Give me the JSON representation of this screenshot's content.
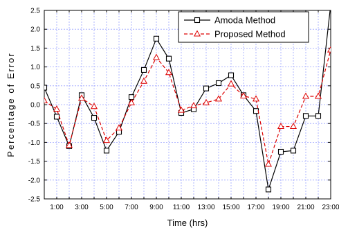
{
  "chart_data": {
    "type": "line",
    "xlabel": "Time (hrs)",
    "ylabel": "Percentage of Error",
    "xlim": [
      0,
      23
    ],
    "ylim": [
      -2.5,
      2.5
    ],
    "x_ticks": [
      {
        "v": 1,
        "label": "1:00"
      },
      {
        "v": 3,
        "label": "3:00"
      },
      {
        "v": 5,
        "label": "5:00"
      },
      {
        "v": 7,
        "label": "7:00"
      },
      {
        "v": 9,
        "label": "9:00"
      },
      {
        "v": 11,
        "label": "11:00"
      },
      {
        "v": 13,
        "label": "13:00"
      },
      {
        "v": 15,
        "label": "15:00"
      },
      {
        "v": 17,
        "label": "17:00"
      },
      {
        "v": 19,
        "label": "19:00"
      },
      {
        "v": 21,
        "label": "21:00"
      },
      {
        "v": 23,
        "label": "23:00"
      }
    ],
    "y_ticks": [
      {
        "v": 2.5,
        "label": "2.5"
      },
      {
        "v": 2.0,
        "label": "2.0"
      },
      {
        "v": 1.5,
        "label": "1.5"
      },
      {
        "v": 1.0,
        "label": "1.0"
      },
      {
        "v": 0.5,
        "label": "0.5"
      },
      {
        "v": 0.0,
        "label": "0.0"
      },
      {
        "v": -0.5,
        "label": "-0.5"
      },
      {
        "v": -1.0,
        "label": "-1.0"
      },
      {
        "v": -1.5,
        "label": "-1.5"
      },
      {
        "v": -2.0,
        "label": "-2.0"
      },
      {
        "v": -2.5,
        "label": "-2.5"
      }
    ],
    "grid": true,
    "legend_position": "top-right",
    "x": [
      0,
      1,
      2,
      3,
      4,
      5,
      6,
      7,
      8,
      9,
      10,
      11,
      12,
      13,
      14,
      15,
      16,
      17,
      18,
      19,
      20,
      21,
      22,
      23
    ],
    "series": [
      {
        "name": "Amoda Method",
        "color": "#000000",
        "line": "solid",
        "marker": "square",
        "values": [
          0.45,
          -0.32,
          -1.1,
          0.25,
          -0.35,
          -1.22,
          -0.72,
          0.2,
          0.92,
          1.75,
          1.22,
          -0.22,
          -0.12,
          0.43,
          0.57,
          0.78,
          0.25,
          -0.17,
          -2.25,
          -1.25,
          -1.22,
          -0.3,
          -0.3,
          2.65
        ]
      },
      {
        "name": "Proposed Method",
        "color": "#dd0000",
        "line": "dashed",
        "marker": "triangle",
        "values": [
          0.1,
          -0.12,
          -1.08,
          0.17,
          -0.05,
          -0.95,
          -0.62,
          0.05,
          0.62,
          1.25,
          0.85,
          -0.15,
          -0.03,
          0.05,
          0.15,
          0.55,
          0.23,
          0.15,
          -1.58,
          -0.58,
          -0.58,
          0.22,
          0.22,
          1.45
        ]
      }
    ]
  }
}
